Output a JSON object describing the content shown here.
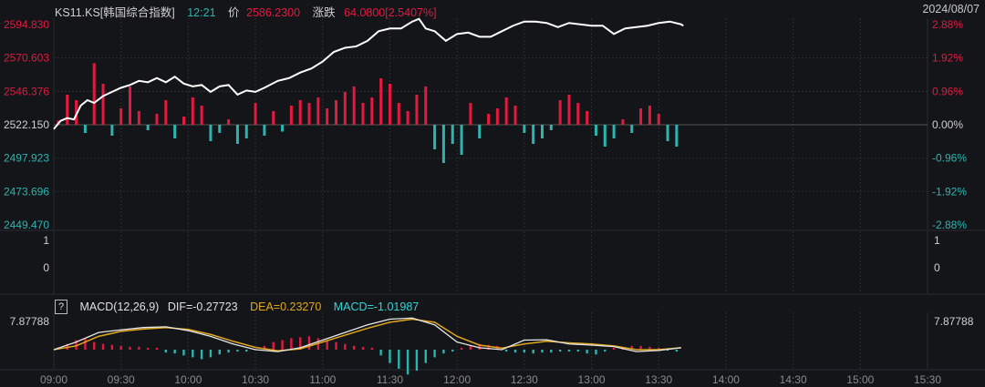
{
  "header": {
    "symbol": "KS11.KS[韩国综合指数]",
    "time": "12:21",
    "price_label": "价",
    "price": "2586.2300",
    "change_label": "涨跌",
    "change": "64.0800[2.5407%]",
    "date": "2024/08/07"
  },
  "colors": {
    "up": "#e3193f",
    "down": "#2bb5b0",
    "price_line": "#ffffff",
    "dif": "#e8e8e8",
    "dea": "#e0a81c",
    "macd": "#2fd6d6",
    "time": "#2bb5b0",
    "bg": "#141519"
  },
  "chart_data": [
    {
      "type": "line",
      "title": "KS11.KS[韩国综合指数]",
      "left_ticks": [
        "2594.830",
        "2570.603",
        "2546.376",
        "2522.150",
        "2497.923",
        "2473.696",
        "2449.470"
      ],
      "right_ticks": [
        "2.88%",
        "1.92%",
        "0.96%",
        "0.00%",
        "-0.96%",
        "-1.92%",
        "-2.88%"
      ],
      "ylim": [
        2449.47,
        2594.83
      ],
      "base": 2522.15,
      "x_ticks": [
        "09:00",
        "09:30",
        "10:00",
        "10:30",
        "11:00",
        "11:30",
        "12:00",
        "12:30",
        "13:00",
        "13:30",
        "14:00",
        "14:30",
        "15:00",
        "15:30"
      ],
      "price": [
        [
          0,
          2519
        ],
        [
          3,
          2525
        ],
        [
          6,
          2527
        ],
        [
          9,
          2526
        ],
        [
          12,
          2536
        ],
        [
          15,
          2540
        ],
        [
          18,
          2538
        ],
        [
          22,
          2543
        ],
        [
          26,
          2546
        ],
        [
          30,
          2549
        ],
        [
          34,
          2551
        ],
        [
          38,
          2554
        ],
        [
          42,
          2553
        ],
        [
          46,
          2556
        ],
        [
          50,
          2553
        ],
        [
          54,
          2557
        ],
        [
          58,
          2552
        ],
        [
          62,
          2550
        ],
        [
          66,
          2551
        ],
        [
          70,
          2546
        ],
        [
          74,
          2550
        ],
        [
          78,
          2551
        ],
        [
          82,
          2544
        ],
        [
          86,
          2547
        ],
        [
          90,
          2546
        ],
        [
          94,
          2549
        ],
        [
          100,
          2554
        ],
        [
          105,
          2556
        ],
        [
          110,
          2560
        ],
        [
          115,
          2563
        ],
        [
          120,
          2568
        ],
        [
          125,
          2575
        ],
        [
          130,
          2578
        ],
        [
          135,
          2579
        ],
        [
          140,
          2583
        ],
        [
          145,
          2590
        ],
        [
          150,
          2592
        ],
        [
          155,
          2592
        ],
        [
          160,
          2597
        ],
        [
          163,
          2599
        ],
        [
          166,
          2592
        ],
        [
          170,
          2590
        ],
        [
          175,
          2583
        ],
        [
          180,
          2588
        ],
        [
          185,
          2589
        ],
        [
          190,
          2586
        ],
        [
          195,
          2586
        ],
        [
          200,
          2590
        ],
        [
          205,
          2594
        ],
        [
          210,
          2597
        ],
        [
          215,
          2597
        ],
        [
          220,
          2596
        ],
        [
          225,
          2593
        ],
        [
          230,
          2596
        ],
        [
          235,
          2595
        ],
        [
          240,
          2594
        ],
        [
          245,
          2594
        ],
        [
          250,
          2588
        ],
        [
          255,
          2592
        ],
        [
          260,
          2593
        ],
        [
          265,
          2594
        ],
        [
          270,
          2596
        ],
        [
          275,
          2597
        ],
        [
          280,
          2595
        ],
        [
          281,
          2594
        ]
      ],
      "bars_interval_min": 4,
      "bars": [
        3,
        22,
        18,
        -6,
        45,
        30,
        -8,
        12,
        28,
        10,
        -4,
        8,
        18,
        -10,
        6,
        20,
        14,
        -12,
        -6,
        4,
        -14,
        -10,
        16,
        -8,
        10,
        -5,
        14,
        18,
        16,
        20,
        12,
        18,
        24,
        28,
        16,
        20,
        34,
        30,
        16,
        10,
        22,
        28,
        -18,
        -28,
        -14,
        -22,
        16,
        -10,
        8,
        12,
        20,
        14,
        -6,
        -14,
        -10,
        -4,
        18,
        22,
        16,
        10,
        -8,
        -16,
        -10,
        4,
        -6,
        12,
        14,
        8,
        -12,
        -16
      ]
    },
    {
      "type": "line",
      "title": "",
      "left_ticks": [
        "1",
        "0"
      ],
      "right_ticks": [
        "1",
        "0"
      ]
    },
    {
      "type": "line",
      "title": "MACD(12,26,9)",
      "legend": {
        "dif": "DIF=-0.27723",
        "dea": "DEA=0.23270",
        "macd": "MACD=-1.01987"
      },
      "left_tick": "7.87788",
      "right_tick": "7.87788",
      "ymax": 7.87788,
      "line_interval_min": 10,
      "dif": [
        0,
        2.0,
        4.5,
        5.2,
        5.8,
        6.0,
        5.0,
        3.5,
        1.5,
        0,
        -0.5,
        0.5,
        2.5,
        4.5,
        6.5,
        8.0,
        8.3,
        6.5,
        2.0,
        0.5,
        0.0,
        2.5,
        2.6,
        1.5,
        1.2,
        0.8,
        -0.5,
        -0.2,
        0.5
      ],
      "dea": [
        0,
        1.0,
        3.5,
        4.8,
        5.4,
        5.8,
        5.3,
        4.0,
        2.2,
        0.6,
        -0.3,
        0.2,
        2.0,
        3.8,
        5.6,
        7.2,
        8.0,
        7.2,
        3.5,
        1.2,
        0.4,
        1.5,
        2.2,
        1.8,
        1.5,
        1.0,
        0.0,
        0.0,
        0.5
      ],
      "hist_interval_min": 4,
      "hist": [
        0.5,
        1.5,
        2.5,
        3,
        2,
        1.5,
        1.25,
        1,
        0.75,
        0.75,
        0.5,
        0.5,
        -0.75,
        -1,
        -1.5,
        -2,
        -2.5,
        -2,
        -1.25,
        -0.75,
        -0.5,
        -0.5,
        0.25,
        1,
        2,
        2.5,
        3,
        3.25,
        3.5,
        3,
        2.5,
        2,
        1.5,
        1,
        0.75,
        0.5,
        -1.5,
        -3.5,
        -5,
        -6.5,
        -5.5,
        -3.5,
        -2,
        -1,
        -0.5,
        0.5,
        1,
        1.5,
        1.25,
        1,
        -0.5,
        -0.75,
        -0.75,
        -1,
        -0.75,
        -0.75,
        -0.5,
        -0.5,
        -0.5,
        -1,
        -1.25,
        -0.5,
        0.5,
        0.75,
        1,
        1,
        0.75,
        0.5,
        -0.25,
        -0.5
      ]
    }
  ]
}
